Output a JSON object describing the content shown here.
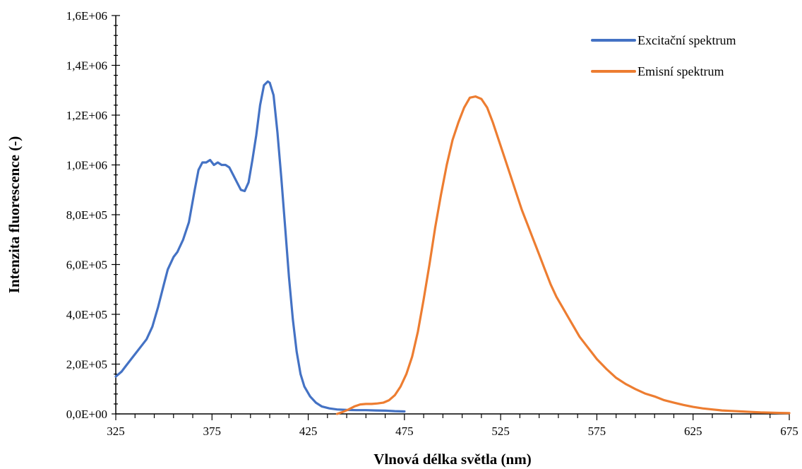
{
  "chart_data": {
    "type": "line",
    "xlabel": "Vlnová délka světla (nm)",
    "ylabel": "Intenzita fluorescence (-)",
    "xlim": [
      325,
      675
    ],
    "ylim": [
      0,
      1600000
    ],
    "x_ticks": [
      325,
      375,
      425,
      475,
      525,
      575,
      625,
      675
    ],
    "x_tick_labels": [
      "325",
      "375",
      "425",
      "475",
      "525",
      "575",
      "625",
      "675"
    ],
    "y_ticks": [
      0,
      200000,
      400000,
      600000,
      800000,
      1000000,
      1200000,
      1400000,
      1600000
    ],
    "y_tick_labels": [
      "0,0E+00",
      "2,0E+05",
      "4,0E+05",
      "6,0E+05",
      "8,0E+05",
      "1,0E+06",
      "1,2E+06",
      "1,4E+06",
      "1,6E+06"
    ],
    "grid": false,
    "legend_position": "top-right",
    "series": [
      {
        "name": "Excitační spektrum",
        "color": "#4472C4",
        "points": [
          [
            325,
            150000
          ],
          [
            328,
            170000
          ],
          [
            330,
            190000
          ],
          [
            333,
            220000
          ],
          [
            336,
            250000
          ],
          [
            339,
            280000
          ],
          [
            341,
            300000
          ],
          [
            344,
            350000
          ],
          [
            347,
            430000
          ],
          [
            350,
            520000
          ],
          [
            352,
            580000
          ],
          [
            355,
            630000
          ],
          [
            357,
            650000
          ],
          [
            360,
            700000
          ],
          [
            363,
            770000
          ],
          [
            366,
            900000
          ],
          [
            368,
            980000
          ],
          [
            370,
            1010000
          ],
          [
            372,
            1010000
          ],
          [
            374,
            1020000
          ],
          [
            376,
            1000000
          ],
          [
            378,
            1010000
          ],
          [
            380,
            1000000
          ],
          [
            382,
            1000000
          ],
          [
            384,
            990000
          ],
          [
            386,
            960000
          ],
          [
            388,
            930000
          ],
          [
            390,
            900000
          ],
          [
            392,
            895000
          ],
          [
            394,
            930000
          ],
          [
            396,
            1020000
          ],
          [
            398,
            1120000
          ],
          [
            400,
            1240000
          ],
          [
            402,
            1320000
          ],
          [
            404,
            1335000
          ],
          [
            405,
            1330000
          ],
          [
            407,
            1280000
          ],
          [
            409,
            1130000
          ],
          [
            411,
            950000
          ],
          [
            413,
            750000
          ],
          [
            415,
            550000
          ],
          [
            417,
            380000
          ],
          [
            419,
            250000
          ],
          [
            421,
            160000
          ],
          [
            423,
            110000
          ],
          [
            426,
            70000
          ],
          [
            429,
            45000
          ],
          [
            432,
            30000
          ],
          [
            436,
            22000
          ],
          [
            440,
            18000
          ],
          [
            445,
            16000
          ],
          [
            450,
            15000
          ],
          [
            455,
            15000
          ],
          [
            460,
            14000
          ],
          [
            465,
            13000
          ],
          [
            470,
            11000
          ],
          [
            475,
            10000
          ]
        ]
      },
      {
        "name": "Emisní spektrum",
        "color": "#ED7D31",
        "points": [
          [
            440,
            0
          ],
          [
            443,
            8000
          ],
          [
            446,
            18000
          ],
          [
            449,
            30000
          ],
          [
            452,
            38000
          ],
          [
            455,
            40000
          ],
          [
            458,
            40000
          ],
          [
            461,
            42000
          ],
          [
            464,
            45000
          ],
          [
            467,
            55000
          ],
          [
            470,
            75000
          ],
          [
            473,
            110000
          ],
          [
            476,
            160000
          ],
          [
            479,
            230000
          ],
          [
            482,
            330000
          ],
          [
            485,
            460000
          ],
          [
            488,
            600000
          ],
          [
            491,
            750000
          ],
          [
            494,
            880000
          ],
          [
            497,
            1000000
          ],
          [
            500,
            1100000
          ],
          [
            503,
            1170000
          ],
          [
            506,
            1230000
          ],
          [
            509,
            1270000
          ],
          [
            512,
            1275000
          ],
          [
            515,
            1265000
          ],
          [
            518,
            1230000
          ],
          [
            521,
            1170000
          ],
          [
            524,
            1100000
          ],
          [
            527,
            1030000
          ],
          [
            530,
            960000
          ],
          [
            533,
            890000
          ],
          [
            536,
            820000
          ],
          [
            539,
            760000
          ],
          [
            542,
            700000
          ],
          [
            545,
            640000
          ],
          [
            548,
            580000
          ],
          [
            551,
            520000
          ],
          [
            554,
            470000
          ],
          [
            557,
            430000
          ],
          [
            560,
            390000
          ],
          [
            563,
            350000
          ],
          [
            566,
            310000
          ],
          [
            569,
            280000
          ],
          [
            572,
            250000
          ],
          [
            575,
            220000
          ],
          [
            580,
            180000
          ],
          [
            585,
            145000
          ],
          [
            590,
            120000
          ],
          [
            595,
            100000
          ],
          [
            600,
            82000
          ],
          [
            605,
            70000
          ],
          [
            610,
            55000
          ],
          [
            615,
            45000
          ],
          [
            620,
            36000
          ],
          [
            625,
            28000
          ],
          [
            630,
            22000
          ],
          [
            635,
            18000
          ],
          [
            640,
            14000
          ],
          [
            645,
            12000
          ],
          [
            650,
            10000
          ],
          [
            655,
            8000
          ],
          [
            660,
            6000
          ],
          [
            665,
            5000
          ],
          [
            670,
            4000
          ],
          [
            675,
            3000
          ]
        ]
      }
    ]
  }
}
